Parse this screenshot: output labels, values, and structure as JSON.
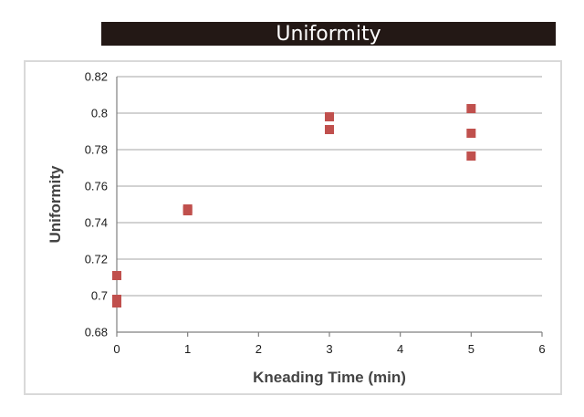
{
  "header": {
    "title": "Uniformity"
  },
  "chart_data": {
    "type": "scatter",
    "title": "Uniformity",
    "xlabel": "Kneading Time (min)",
    "ylabel": "Uniformity",
    "xlim": [
      0,
      6
    ],
    "ylim": [
      0.68,
      0.82
    ],
    "x_ticks": [
      "0",
      "1",
      "2",
      "3",
      "4",
      "5",
      "6"
    ],
    "y_ticks": [
      "0.68",
      "0.7",
      "0.72",
      "0.74",
      "0.76",
      "0.78",
      "0.8",
      "0.82"
    ],
    "grid": true,
    "marker_color": "#c0504d",
    "gridline_color": "#a6a6a6",
    "series": [
      {
        "points": [
          {
            "x": 0,
            "y": 0.711
          },
          {
            "x": 0,
            "y": 0.698
          },
          {
            "x": 0,
            "y": 0.696
          },
          {
            "x": 1,
            "y": 0.7475
          },
          {
            "x": 1,
            "y": 0.7465
          },
          {
            "x": 3,
            "y": 0.798
          },
          {
            "x": 3,
            "y": 0.791
          },
          {
            "x": 5,
            "y": 0.8025
          },
          {
            "x": 5,
            "y": 0.789
          },
          {
            "x": 5,
            "y": 0.7765
          }
        ]
      }
    ]
  }
}
